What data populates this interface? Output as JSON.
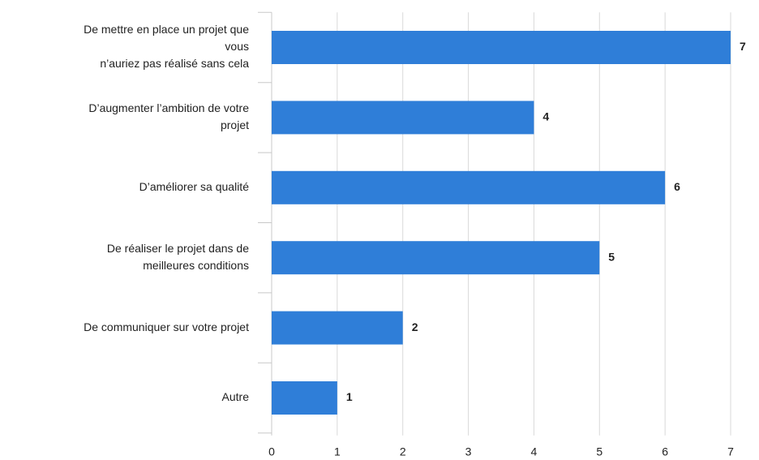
{
  "chart_data": {
    "type": "bar",
    "orientation": "horizontal",
    "categories": [
      [
        "De mettre en place un projet que",
        "vous",
        "n’auriez pas réalisé sans cela"
      ],
      [
        "D’augmenter l’ambition de votre",
        "projet"
      ],
      [
        "D’améliorer sa qualité"
      ],
      [
        "De réaliser le projet dans de",
        "meilleures conditions"
      ],
      [
        "De communiquer sur votre projet"
      ],
      [
        "Autre"
      ]
    ],
    "values": [
      7,
      4,
      6,
      5,
      2,
      1
    ],
    "color": "#2f7ed8",
    "xlim": [
      0,
      7
    ],
    "xticks": [
      0,
      1,
      2,
      3,
      4,
      5,
      6,
      7
    ],
    "grid": true
  }
}
